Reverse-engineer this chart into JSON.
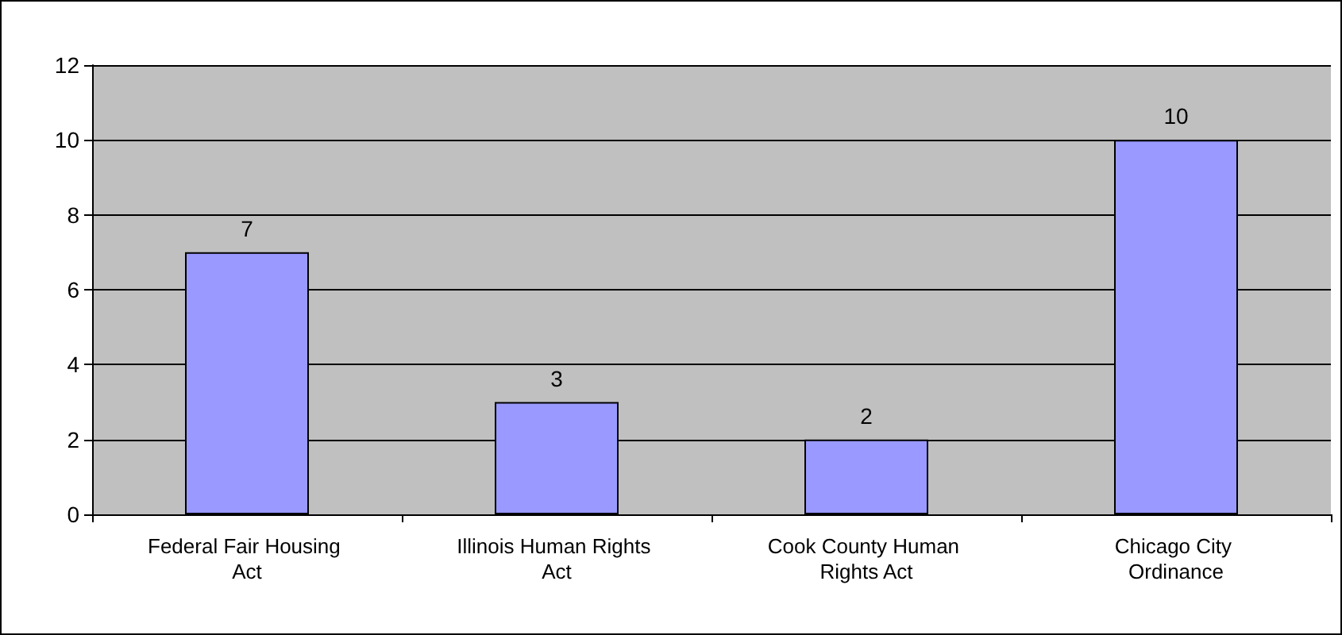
{
  "chart_data": {
    "type": "bar",
    "categories": [
      "Federal Fair Housing Act",
      "Illinois Human Rights Act",
      "Cook County Human Rights Act",
      "Chicago City Ordinance"
    ],
    "values": [
      7,
      3,
      2,
      10
    ],
    "color": "#9999ff",
    "ylim": [
      0,
      12
    ],
    "yticks": [
      0,
      2,
      4,
      6,
      8,
      10,
      12
    ],
    "grid": "y",
    "data_labels": true
  }
}
